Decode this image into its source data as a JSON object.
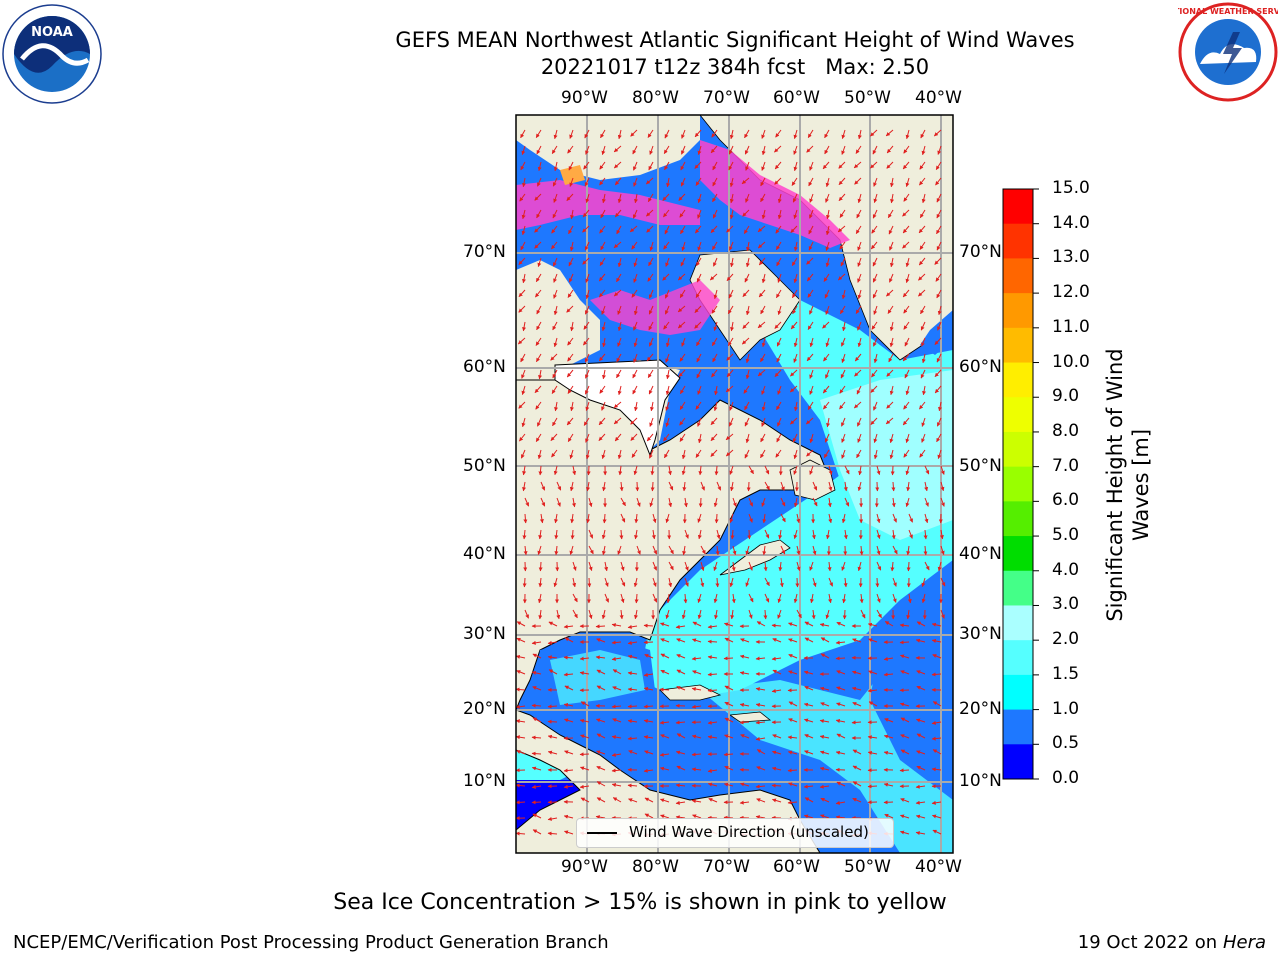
{
  "header": {
    "title_line1": "GEFS MEAN Northwest Atlantic Significant Height of Wind Waves",
    "title_line2": "20221017 t12z 384h fcst   Max: 2.50"
  },
  "logos": {
    "left_name": "NOAA",
    "left_ring_text": "NATIONAL OCEANIC AND ATMOSPHERIC ADMINISTRATION · U.S. DEPARTMENT OF COMMERCE",
    "right_ring_text": "NATIONAL WEATHER SERVICE"
  },
  "map": {
    "lon_labels": [
      "90°W",
      "80°W",
      "70°W",
      "60°W",
      "50°W",
      "40°W"
    ],
    "lat_labels": [
      "70°N",
      "60°N",
      "50°N",
      "40°N",
      "30°N",
      "20°N",
      "10°N"
    ],
    "legend_label": "Wind Wave Direction (unscaled)",
    "colors": {
      "land": "#efeedc",
      "ocean_low": "#0000ff",
      "ocean_mid": "#1e78ff",
      "ocean_high": "#00ffff",
      "ocean_top": "#a0ffff",
      "ice": "#ff44cc",
      "arrow": "#e0201f",
      "grid": "#aaaaaa"
    }
  },
  "colorbar": {
    "title_line1": "Significant Height of Wind",
    "title_line2": "Waves [m]",
    "ticks": [
      "15.0",
      "14.0",
      "13.0",
      "12.0",
      "11.0",
      "10.0",
      "9.0",
      "8.0",
      "7.0",
      "6.0",
      "5.0",
      "4.0",
      "3.0",
      "2.0",
      "1.5",
      "1.0",
      "0.5",
      "0.0"
    ],
    "colors": [
      "#ff0000",
      "#ff3300",
      "#ff6600",
      "#ff9900",
      "#ffbb00",
      "#ffee00",
      "#eeff00",
      "#ccff00",
      "#99ff00",
      "#55ee00",
      "#00dd00",
      "#44ff88",
      "#aaffff",
      "#55ffff",
      "#00ffff",
      "#1e78ff",
      "#0000ff"
    ]
  },
  "caption": "Sea Ice Concentration > 15% is shown in pink to yellow",
  "footer": {
    "left": "NCEP/EMC/Verification Post Processing Product Generation Branch",
    "date": "19 Oct 2022 on ",
    "machine": "Hera"
  }
}
